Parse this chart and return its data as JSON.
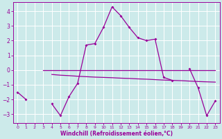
{
  "xlabel": "Windchill (Refroidissement éolien,°C)",
  "background_color": "#cceaea",
  "grid_color": "#ffffff",
  "line_color": "#990099",
  "xlim": [
    -0.5,
    23.5
  ],
  "ylim": [
    -3.6,
    4.6
  ],
  "yticks": [
    -3,
    -2,
    -1,
    0,
    1,
    2,
    3,
    4
  ],
  "xticks": [
    0,
    1,
    2,
    3,
    4,
    5,
    6,
    7,
    8,
    9,
    10,
    11,
    12,
    13,
    14,
    15,
    16,
    17,
    18,
    19,
    20,
    21,
    22,
    23
  ],
  "line1_segments": [
    {
      "x": [
        0,
        1
      ],
      "y": [
        -1.5,
        -2.0
      ]
    },
    {
      "x": [
        4,
        5,
        6,
        7,
        8,
        9,
        10,
        11,
        12,
        13,
        14,
        15,
        16,
        17,
        18
      ],
      "y": [
        -2.3,
        -3.1,
        -1.8,
        -0.9,
        1.7,
        1.8,
        2.9,
        4.3,
        3.7,
        2.9,
        2.2,
        2.0,
        2.1,
        -0.5,
        -0.7
      ]
    },
    {
      "x": [
        20,
        21,
        22,
        23
      ],
      "y": [
        0.1,
        -1.2,
        -3.1,
        -2.1
      ]
    }
  ],
  "line2_x": [
    3,
    4,
    5,
    6,
    7,
    8,
    9,
    10,
    11,
    12,
    13,
    14,
    15,
    16,
    17,
    18,
    19,
    20,
    21,
    22,
    23
  ],
  "line2_y": [
    0.0,
    0.0,
    0.0,
    0.0,
    0.0,
    0.0,
    0.0,
    0.0,
    0.0,
    0.0,
    0.0,
    0.0,
    0.0,
    0.0,
    0.0,
    0.0,
    0.0,
    0.0,
    0.0,
    0.0,
    0.0
  ],
  "line3_x": [
    4,
    5,
    6,
    7,
    8,
    9,
    10,
    11,
    12,
    13,
    14,
    15,
    16,
    17,
    18,
    19,
    20,
    21,
    22,
    23
  ],
  "line3_y": [
    -0.3,
    -0.35,
    -0.38,
    -0.42,
    -0.45,
    -0.48,
    -0.5,
    -0.52,
    -0.55,
    -0.57,
    -0.6,
    -0.62,
    -0.65,
    -0.68,
    -0.7,
    -0.72,
    -0.75,
    -0.78,
    -0.8,
    -0.82
  ]
}
